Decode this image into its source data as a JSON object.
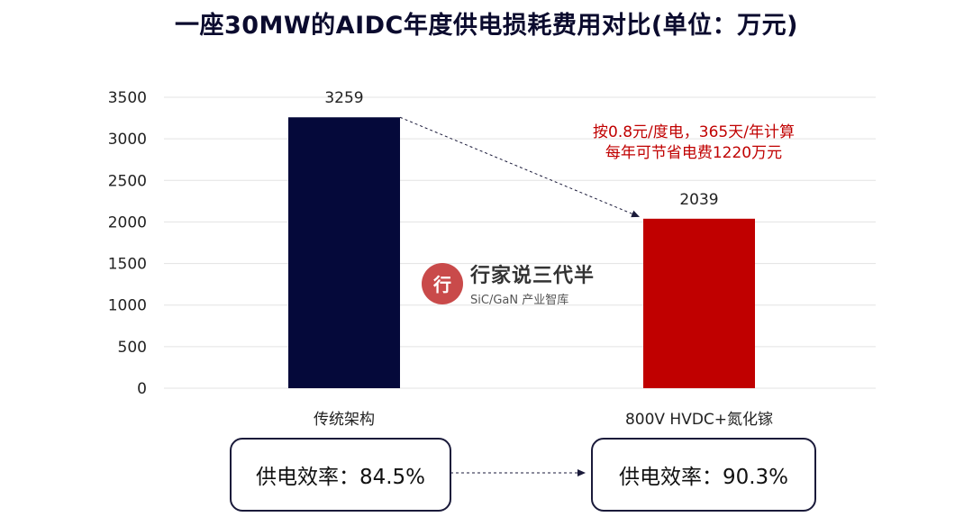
{
  "chart_data": {
    "type": "bar",
    "title": "一座30MW的AIDC年度供电损耗费用对比(单位：万元)",
    "categories": [
      "传统架构",
      "800V HVDC+氮化镓"
    ],
    "values": [
      3259,
      2039
    ],
    "data_labels": [
      "3259",
      "2039"
    ],
    "bar_colors": [
      "#05093a",
      "#c00000"
    ],
    "ylim": [
      0,
      3500
    ],
    "yticks": [
      0,
      500,
      1000,
      1500,
      2000,
      2500,
      3000,
      3500
    ],
    "grid": true,
    "xlabel": "",
    "ylabel": ""
  },
  "annotation": {
    "line1": "按0.8元/度电，365天/年计算",
    "line2": "每年可节省电费1220万元",
    "color": "#c00000"
  },
  "watermark": {
    "name": "行家说三代半",
    "sub": "SiC/GaN 产业智库",
    "logo_glyph": "行"
  },
  "efficiency": {
    "left_label": "供电效率：84.5%",
    "right_label": "供电效率：90.3%"
  }
}
